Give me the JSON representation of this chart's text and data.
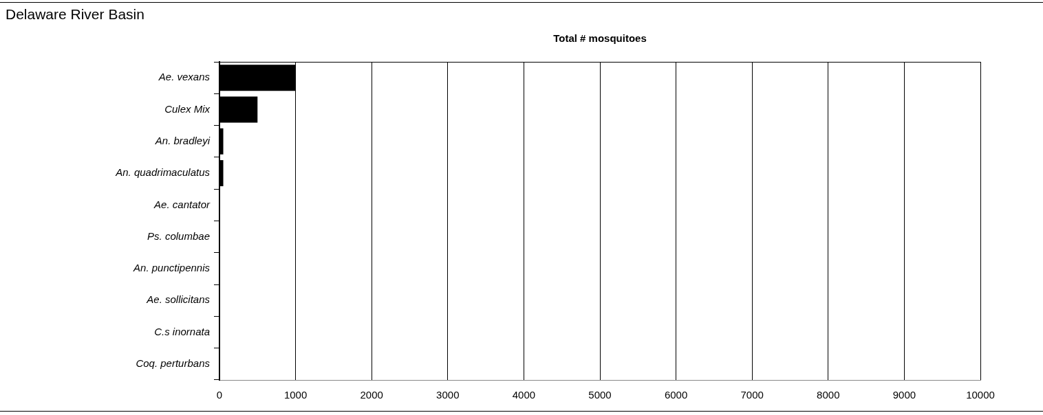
{
  "chart_data": {
    "type": "bar",
    "orientation": "horizontal",
    "title": "Delaware River Basin",
    "xlabel": "Total # mosquitoes",
    "categories": [
      "Ae. vexans",
      "Culex Mix",
      "An. bradleyi",
      "An. quadrimaculatus",
      "Ae. cantator",
      "Ps. columbae",
      "An. punctipennis",
      "Ae. sollicitans",
      "C.s inornata",
      "Coq. perturbans"
    ],
    "values": [
      1000,
      500,
      50,
      50,
      0,
      0,
      0,
      0,
      0,
      0
    ],
    "color": "#000000",
    "xlim": [
      0,
      10000
    ],
    "xticks": [
      0,
      1000,
      2000,
      3000,
      4000,
      5000,
      6000,
      7000,
      8000,
      9000,
      10000
    ],
    "grid": "x",
    "legend": false
  }
}
